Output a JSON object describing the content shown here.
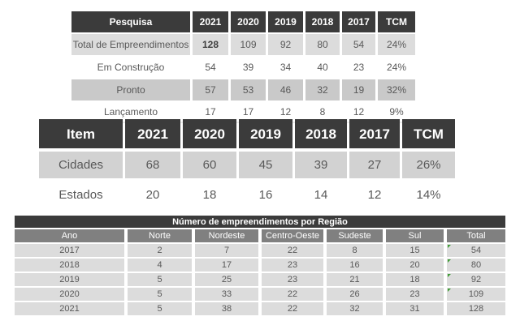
{
  "colors": {
    "dark_header": "#3b3b3b",
    "mid_header": "#808080",
    "row_light": "#dcdcdc",
    "row_shaded": "#c9c9c9",
    "body_text": "#595959",
    "flag_green": "#3f9c35"
  },
  "table_pesquisa": {
    "headers": [
      "Pesquisa",
      "2021",
      "2020",
      "2019",
      "2018",
      "2017",
      "TCM"
    ],
    "rows": [
      {
        "label": "Total de Empreendimentos",
        "values": [
          "128",
          "109",
          "92",
          "80",
          "54",
          "24%"
        ]
      },
      {
        "label": "Em Construção",
        "values": [
          "54",
          "39",
          "34",
          "40",
          "23",
          "24%"
        ]
      },
      {
        "label": "Pronto",
        "values": [
          "57",
          "53",
          "46",
          "32",
          "19",
          "32%"
        ]
      },
      {
        "label": "Lançamento",
        "values": [
          "17",
          "17",
          "12",
          "8",
          "12",
          "9%"
        ]
      }
    ]
  },
  "table_item": {
    "headers": [
      "Item",
      "2021",
      "2020",
      "2019",
      "2018",
      "2017",
      "TCM"
    ],
    "rows": [
      {
        "label": "Cidades",
        "values": [
          "68",
          "60",
          "45",
          "39",
          "27",
          "26%"
        ]
      },
      {
        "label": "Estados",
        "values": [
          "20",
          "18",
          "16",
          "14",
          "12",
          "14%"
        ]
      }
    ]
  },
  "table_regiao": {
    "title": "Número de empreendimentos por Região",
    "headers": [
      "Ano",
      "Norte",
      "Nordeste",
      "Centro-Oeste",
      "Sudeste",
      "Sul",
      "Total"
    ],
    "rows": [
      {
        "cells": [
          "2017",
          "2",
          "7",
          "22",
          "8",
          "15",
          "54"
        ],
        "flagged": true
      },
      {
        "cells": [
          "2018",
          "4",
          "17",
          "23",
          "16",
          "20",
          "80"
        ],
        "flagged": true
      },
      {
        "cells": [
          "2019",
          "5",
          "25",
          "23",
          "21",
          "18",
          "92"
        ],
        "flagged": true
      },
      {
        "cells": [
          "2020",
          "5",
          "33",
          "22",
          "26",
          "23",
          "109"
        ],
        "flagged": true
      },
      {
        "cells": [
          "2021",
          "5",
          "38",
          "22",
          "32",
          "31",
          "128"
        ],
        "flagged": false
      }
    ]
  }
}
